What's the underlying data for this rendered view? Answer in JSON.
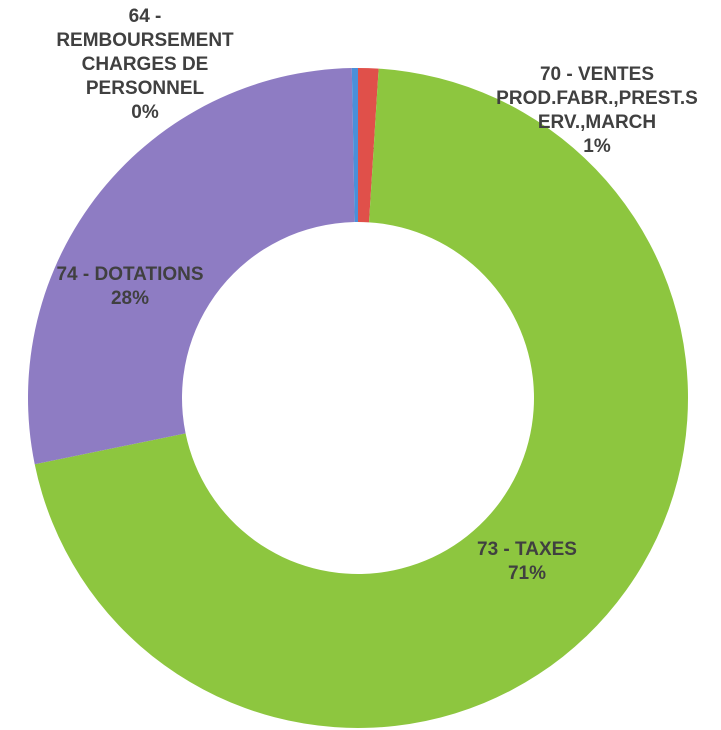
{
  "chart_data": {
    "type": "donut",
    "categories": [
      "70 - VENTES\nPROD.FABR.,PREST.S\nERV.,MARCH",
      "73 - TAXES",
      "74 - DOTATIONS",
      "64 -\nREMBOURSEMENT\nCHARGES DE\nPERSONNEL"
    ],
    "values": [
      1,
      71,
      28,
      0.3
    ],
    "value_labels": [
      "1%",
      "71%",
      "28%",
      "0%"
    ],
    "colors": [
      "#e0504a",
      "#8dc63f",
      "#8e7cc3",
      "#4a90d9"
    ]
  }
}
